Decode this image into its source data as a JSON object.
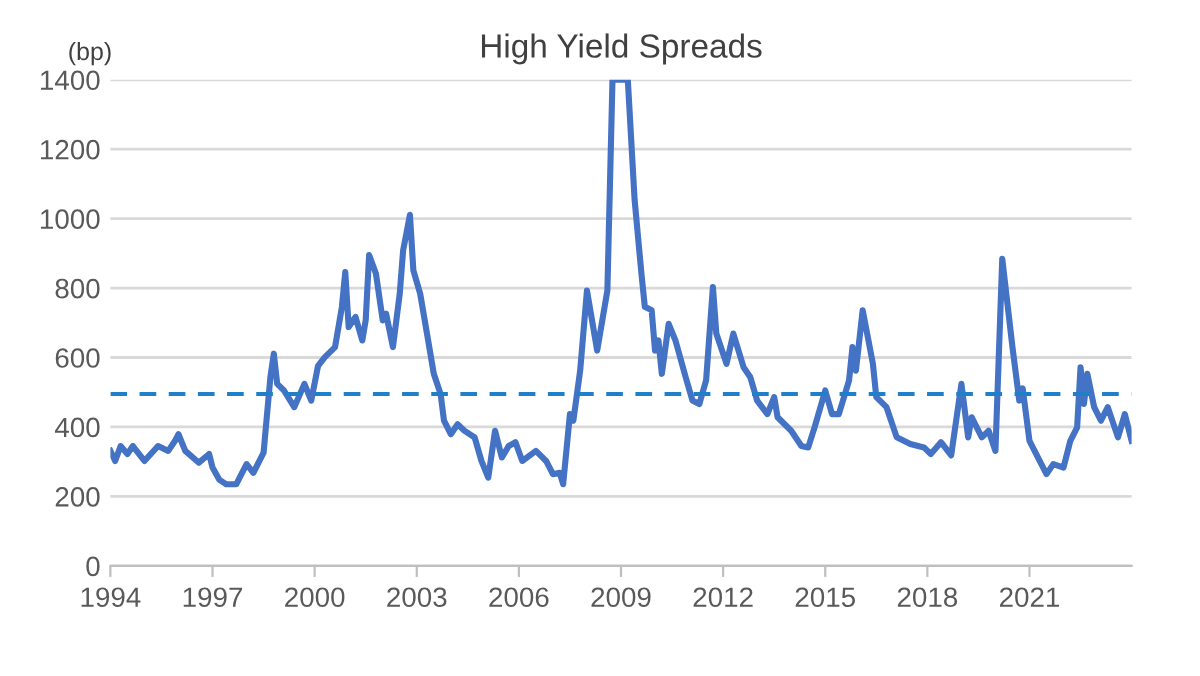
{
  "chart_data": {
    "type": "line",
    "title": "High Yield Spreads",
    "ylabel": "(bp)",
    "x": [
      1994.0,
      1994.14,
      1994.3,
      1994.5,
      1994.66,
      1995.0,
      1995.4,
      1995.7,
      1995.9,
      1996.0,
      1996.2,
      1996.6,
      1996.9,
      1997.0,
      1997.2,
      1997.4,
      1997.7,
      1998.0,
      1998.2,
      1998.5,
      1998.7,
      1998.8,
      1998.9,
      1999.1,
      1999.4,
      1999.7,
      1999.9,
      2000.1,
      2000.3,
      2000.6,
      2000.8,
      2000.9,
      2001.0,
      2001.2,
      2001.4,
      2001.5,
      2001.6,
      2001.8,
      2002.0,
      2002.1,
      2002.3,
      2002.5,
      2002.6,
      2002.8,
      2002.9,
      2003.1,
      2003.3,
      2003.5,
      2003.7,
      2003.8,
      2004.0,
      2004.2,
      2004.4,
      2004.7,
      2004.9,
      2005.1,
      2005.3,
      2005.5,
      2005.7,
      2005.9,
      2006.1,
      2006.5,
      2006.8,
      2007.0,
      2007.2,
      2007.3,
      2007.5,
      2007.6,
      2007.8,
      2008.0,
      2008.3,
      2008.6,
      2008.75,
      2009.2,
      2009.4,
      2009.6,
      2009.7,
      2009.9,
      2010.0,
      2010.1,
      2010.2,
      2010.4,
      2010.6,
      2010.9,
      2011.1,
      2011.3,
      2011.5,
      2011.7,
      2011.8,
      2012.1,
      2012.3,
      2012.6,
      2012.8,
      2013.0,
      2013.3,
      2013.5,
      2013.6,
      2014.0,
      2014.3,
      2014.5,
      2014.7,
      2015.0,
      2015.2,
      2015.4,
      2015.7,
      2015.8,
      2015.9,
      2016.1,
      2016.4,
      2016.5,
      2016.8,
      2017.1,
      2017.5,
      2017.9,
      2018.1,
      2018.4,
      2018.7,
      2019.0,
      2019.2,
      2019.3,
      2019.6,
      2019.8,
      2020.0,
      2020.2,
      2020.5,
      2020.7,
      2020.8,
      2021.0,
      2021.3,
      2021.5,
      2021.7,
      2022.0,
      2022.2,
      2022.4,
      2022.5,
      2022.6,
      2022.7,
      2022.9,
      2023.1,
      2023.3,
      2023.6,
      2023.8,
      2024.0
    ],
    "series": [
      {
        "color": "#4472c4",
        "values": [
          331,
          302,
          345,
          322,
          345,
          302,
          345,
          331,
          360,
          379,
          331,
          297,
          322,
          283,
          248,
          235,
          235,
          293,
          268,
          326,
          543,
          611,
          524,
          505,
          457,
          524,
          476,
          576,
          601,
          630,
          745,
          846,
          688,
          717,
          649,
          707,
          895,
          842,
          707,
          726,
          630,
          784,
          909,
          1011,
          851,
          784,
          669,
          553,
          495,
          418,
          379,
          408,
          389,
          370,
          302,
          254,
          389,
          312,
          345,
          356,
          302,
          331,
          302,
          264,
          268,
          235,
          437,
          418,
          562,
          793,
          620,
          793,
          1400,
          1400,
          1054,
          842,
          746,
          736,
          620,
          649,
          553,
          697,
          649,
          543,
          476,
          466,
          534,
          803,
          669,
          582,
          669,
          572,
          543,
          476,
          437,
          486,
          428,
          389,
          345,
          341,
          403,
          505,
          437,
          437,
          534,
          630,
          562,
          736,
          582,
          486,
          457,
          370,
          351,
          341,
          322,
          356,
          318,
          524,
          370,
          428,
          370,
          389,
          331,
          884,
          630,
          476,
          511,
          360,
          302,
          264,
          293,
          283,
          360,
          399,
          572,
          466,
          553,
          457,
          418,
          457,
          370,
          437,
          360
        ]
      }
    ],
    "xlim": [
      1994,
      2024
    ],
    "xticks": [
      1994,
      1997,
      2000,
      2003,
      2006,
      2009,
      2012,
      2015,
      2018,
      2021
    ],
    "ylim": [
      0,
      1400
    ],
    "yticks": [
      0,
      200,
      400,
      600,
      800,
      1000,
      1200,
      1400
    ],
    "grid": "y",
    "line_style": "solid",
    "marker": "none",
    "ref_lines": [
      {
        "axis": "y",
        "value": 495,
        "color": "#1f7fc8",
        "line_style": "dashed"
      }
    ]
  }
}
